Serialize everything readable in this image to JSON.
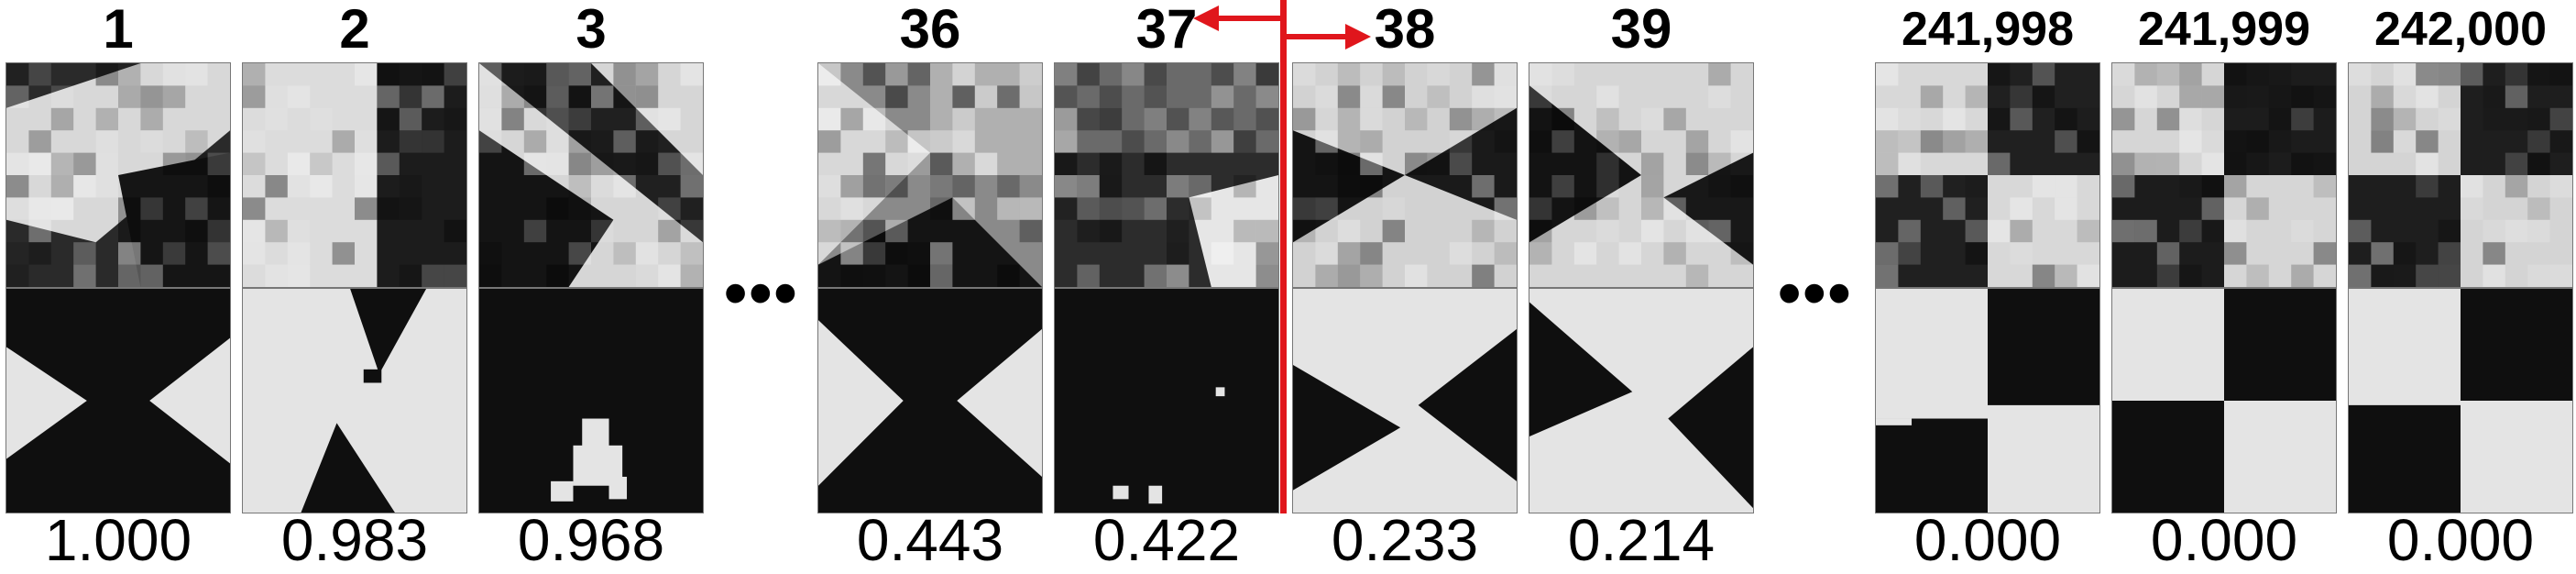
{
  "ellipsis": "•••",
  "colors": {
    "divider": "#e0161c",
    "arrow": "#e0161c",
    "dark": "#0f0f0f",
    "light": "#e4e4e4"
  },
  "columns": [
    {
      "rank": "1",
      "score": "1.000",
      "pattern": "ranked-1"
    },
    {
      "rank": "2",
      "score": "0.983",
      "pattern": "ranked-2"
    },
    {
      "rank": "3",
      "score": "0.968",
      "pattern": "ranked-3"
    },
    {
      "rank": "36",
      "score": "0.443",
      "pattern": "ranked-36"
    },
    {
      "rank": "37",
      "score": "0.422",
      "pattern": "ranked-37"
    },
    {
      "rank": "38",
      "score": "0.233",
      "pattern": "ranked-38"
    },
    {
      "rank": "39",
      "score": "0.214",
      "pattern": "ranked-39"
    },
    {
      "rank": "241,998",
      "score": "0.000",
      "pattern": "ranked-241998"
    },
    {
      "rank": "241,999",
      "score": "0.000",
      "pattern": "ranked-241999"
    },
    {
      "rank": "242,000",
      "score": "0.000",
      "pattern": "ranked-242000"
    }
  ]
}
